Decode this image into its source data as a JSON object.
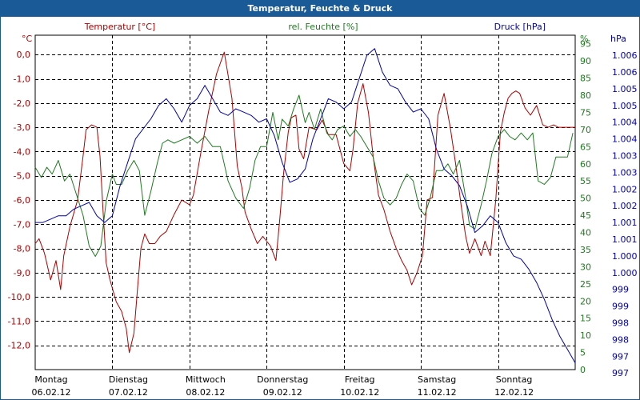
{
  "window": {
    "title": "Temperatur, Feuchte & Druck"
  },
  "chart_data": {
    "type": "line",
    "title": "Temperatur, Feuchte & Druck",
    "grid": true,
    "colors": {
      "temp": "#b00000",
      "hum": "#1f7a1f",
      "press": "#0000b0",
      "grid": "#000000"
    },
    "axes": {
      "temp": {
        "title": "Temperatur [°C]",
        "unit": "°C",
        "ylim": [
          -13.0,
          0.8
        ],
        "ticks": [
          "0,0",
          "-1,0",
          "-2,0",
          "-3,0",
          "-4,0",
          "-5,0",
          "-6,0",
          "-7,0",
          "-8,0",
          "-9,0",
          "-10,0",
          "-11,0",
          "-12,0"
        ]
      },
      "hum": {
        "title": "rel. Feuchte [%]",
        "unit": "%",
        "ylim": [
          0,
          97.5
        ],
        "ticks": [
          "95",
          "90",
          "85",
          "80",
          "75",
          "70",
          "65",
          "60",
          "55",
          "50",
          "45",
          "40",
          "35",
          "30",
          "25",
          "20",
          "15",
          "10",
          "5",
          "0"
        ]
      },
      "press": {
        "title": "Druck [hPa]",
        "unit": "hPa",
        "ylim": [
          996.6,
          1006.6
        ],
        "ticks": [
          "1.006",
          "1.006",
          "1.005",
          "1.005",
          "1.004",
          "1.004",
          "1.003",
          "1.003",
          "1.002",
          "1.002",
          "1.001",
          "1.001",
          "1.000",
          "1.000",
          "999",
          "999",
          "998",
          "998",
          "997",
          "997"
        ]
      }
    },
    "x_labels": [
      {
        "day": "Montag",
        "date": "06.02.12"
      },
      {
        "day": "Dienstag",
        "date": "07.02.12"
      },
      {
        "day": "Mittwoch",
        "date": "08.02.12"
      },
      {
        "day": "Donnerstag",
        "date": "09.02.12"
      },
      {
        "day": "Freitag",
        "date": "10.02.12"
      },
      {
        "day": "Samstag",
        "date": "11.02.12"
      },
      {
        "day": "Sonntag",
        "date": "12.02.12"
      }
    ],
    "xlim": [
      0,
      7
    ],
    "series": [
      {
        "axis": "temp",
        "x": [
          0.0,
          0.05,
          0.12,
          0.2,
          0.27,
          0.33,
          0.37,
          0.45,
          0.55,
          0.62,
          0.66,
          0.73,
          0.8,
          0.84,
          0.88,
          0.92,
          0.97,
          1.05,
          1.12,
          1.18,
          1.22,
          1.28,
          1.33,
          1.37,
          1.42,
          1.48,
          1.55,
          1.62,
          1.7,
          1.8,
          1.9,
          2.0,
          2.05,
          2.15,
          2.25,
          2.35,
          2.45,
          2.55,
          2.62,
          2.68,
          2.72,
          2.8,
          2.88,
          2.95,
          3.05,
          3.12,
          3.17,
          3.22,
          3.28,
          3.32,
          3.38,
          3.42,
          3.48,
          3.55,
          3.65,
          3.72,
          3.8,
          3.9,
          4.0,
          4.08,
          4.12,
          4.18,
          4.25,
          4.32,
          4.38,
          4.45,
          4.52,
          4.6,
          4.68,
          4.75,
          4.82,
          4.88,
          4.95,
          5.02,
          5.08,
          5.15,
          5.22,
          5.3,
          5.38,
          5.45,
          5.52,
          5.58,
          5.63,
          5.7,
          5.78,
          5.83,
          5.9,
          5.97,
          6.03,
          6.08,
          6.13,
          6.18,
          6.23,
          6.28,
          6.35,
          6.42,
          6.5,
          6.58,
          6.65,
          6.72,
          6.78,
          6.83,
          6.88,
          6.93,
          6.97,
          7.0
        ],
        "y": [
          -7.8,
          -7.6,
          -8.2,
          -9.3,
          -8.5,
          -9.7,
          -8.3,
          -7.1,
          -6.0,
          -4.2,
          -3.1,
          -2.9,
          -3.0,
          -4.2,
          -6.5,
          -8.6,
          -9.3,
          -10.2,
          -10.6,
          -11.3,
          -12.3,
          -11.5,
          -9.5,
          -8.0,
          -7.4,
          -7.8,
          -7.8,
          -7.5,
          -7.3,
          -6.6,
          -6.0,
          -6.2,
          -5.8,
          -4.0,
          -2.3,
          -0.8,
          0.1,
          -1.8,
          -4.6,
          -5.5,
          -6.5,
          -7.2,
          -7.8,
          -7.5,
          -7.9,
          -8.5,
          -6.8,
          -4.9,
          -3.2,
          -2.6,
          -2.5,
          -3.9,
          -4.3,
          -3.0,
          -3.1,
          -2.7,
          -3.3,
          -3.3,
          -4.5,
          -4.8,
          -3.9,
          -2.0,
          -1.2,
          -2.4,
          -4.2,
          -5.8,
          -6.4,
          -7.3,
          -8.0,
          -8.5,
          -8.9,
          -9.5,
          -9.0,
          -8.3,
          -6.0,
          -5.9,
          -2.5,
          -1.6,
          -3.0,
          -4.5,
          -6.2,
          -7.5,
          -8.2,
          -7.6,
          -8.3,
          -7.7,
          -8.3,
          -6.0,
          -3.2,
          -2.4,
          -1.8,
          -1.6,
          -1.5,
          -1.6,
          -2.2,
          -2.5,
          -2.1,
          -2.9,
          -3.0,
          -2.9,
          -3.0,
          -3.0,
          -3.0,
          -3.0,
          -3.0,
          -3.0
        ]
      },
      {
        "axis": "hum",
        "x": [
          0.0,
          0.08,
          0.15,
          0.22,
          0.3,
          0.38,
          0.45,
          0.55,
          0.62,
          0.7,
          0.78,
          0.85,
          0.92,
          1.0,
          1.05,
          1.12,
          1.2,
          1.28,
          1.35,
          1.42,
          1.5,
          1.58,
          1.65,
          1.72,
          1.8,
          1.9,
          2.0,
          2.1,
          2.2,
          2.3,
          2.4,
          2.5,
          2.6,
          2.7,
          2.78,
          2.85,
          2.92,
          3.0,
          3.08,
          3.15,
          3.2,
          3.28,
          3.35,
          3.42,
          3.5,
          3.55,
          3.62,
          3.7,
          3.78,
          3.85,
          3.92,
          4.0,
          4.08,
          4.15,
          4.22,
          4.3,
          4.38,
          4.45,
          4.52,
          4.6,
          4.68,
          4.75,
          4.82,
          4.9,
          4.98,
          5.05,
          5.12,
          5.2,
          5.28,
          5.35,
          5.42,
          5.5,
          5.58,
          5.63,
          5.7,
          5.78,
          5.85,
          5.92,
          6.0,
          6.08,
          6.15,
          6.22,
          6.3,
          6.38,
          6.45,
          6.52,
          6.6,
          6.68,
          6.75,
          6.82,
          6.9,
          6.97
        ],
        "y": [
          59,
          56,
          59,
          57,
          61,
          55,
          57,
          50,
          45,
          36,
          33,
          36,
          49,
          57,
          54,
          54,
          58,
          61,
          58,
          45,
          52,
          60,
          66,
          67,
          66,
          67,
          68,
          66,
          68,
          65,
          65,
          55,
          50,
          47,
          53,
          61,
          65,
          65,
          75,
          67,
          73,
          71,
          76,
          80,
          72,
          75,
          70,
          76,
          69,
          67,
          70,
          71,
          68,
          70,
          68,
          65,
          62,
          55,
          50,
          48,
          50,
          54,
          57,
          55,
          47,
          45,
          50,
          58,
          58,
          60,
          57,
          61,
          50,
          42,
          41,
          48,
          55,
          63,
          68,
          70,
          68,
          67,
          69,
          67,
          69,
          55,
          54,
          56,
          62,
          62,
          62,
          69
        ]
      },
      {
        "axis": "press",
        "x": [
          0.0,
          0.1,
          0.2,
          0.3,
          0.4,
          0.5,
          0.6,
          0.7,
          0.8,
          0.9,
          1.0,
          1.1,
          1.2,
          1.3,
          1.4,
          1.5,
          1.6,
          1.7,
          1.8,
          1.9,
          2.0,
          2.1,
          2.2,
          2.3,
          2.4,
          2.5,
          2.6,
          2.7,
          2.8,
          2.9,
          3.0,
          3.1,
          3.2,
          3.3,
          3.4,
          3.5,
          3.6,
          3.7,
          3.8,
          3.9,
          4.0,
          4.1,
          4.2,
          4.3,
          4.4,
          4.5,
          4.6,
          4.7,
          4.8,
          4.9,
          5.0,
          5.1,
          5.2,
          5.3,
          5.4,
          5.5,
          5.6,
          5.7,
          5.8,
          5.9,
          6.0,
          6.1,
          6.2,
          6.3,
          6.4,
          6.5,
          6.6,
          6.7,
          6.8,
          6.9,
          7.0
        ],
        "y": [
          1001.0,
          1001.0,
          1001.1,
          1001.2,
          1001.2,
          1001.4,
          1001.5,
          1001.6,
          1001.2,
          1001.0,
          1001.2,
          1002.1,
          1002.8,
          1003.5,
          1003.8,
          1004.1,
          1004.5,
          1004.7,
          1004.4,
          1004.0,
          1004.5,
          1004.7,
          1005.1,
          1004.7,
          1004.3,
          1004.2,
          1004.4,
          1004.3,
          1004.2,
          1004.0,
          1004.1,
          1003.6,
          1002.8,
          1002.2,
          1002.3,
          1002.6,
          1003.5,
          1004.1,
          1004.7,
          1004.6,
          1004.4,
          1004.6,
          1005.3,
          1006.0,
          1006.2,
          1005.5,
          1005.1,
          1005.0,
          1004.6,
          1004.3,
          1004.4,
          1004.1,
          1003.2,
          1002.6,
          1002.4,
          1002.1,
          1001.5,
          1000.7,
          1000.9,
          1001.2,
          1001.0,
          1000.4,
          1000.0,
          999.9,
          999.6,
          999.2,
          998.7,
          998.1,
          997.6,
          997.2,
          996.8
        ]
      }
    ]
  }
}
